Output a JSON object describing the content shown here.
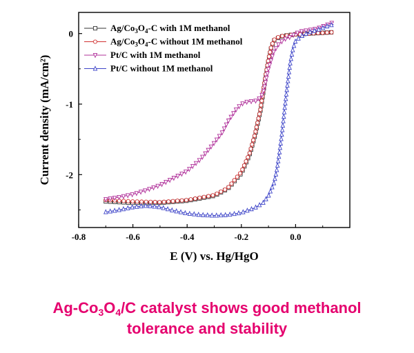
{
  "chart_data": {
    "type": "line",
    "xlabel": "E (V) vs. Hg/HgO",
    "ylabel": "Current density (mA/cm²)",
    "xlim": [
      -0.8,
      0.2
    ],
    "ylim": [
      -2.75,
      0.3
    ],
    "xticks": [
      -0.8,
      -0.6,
      -0.4,
      -0.2,
      0.0
    ],
    "xtick_labels": [
      "-0.8",
      "-0.6",
      "-0.4",
      "-0.2",
      "0.0"
    ],
    "yticks": [
      0,
      -1,
      -2
    ],
    "ytick_labels": [
      "0",
      "-1",
      "-2"
    ],
    "grid": false,
    "legend_position": "top-right",
    "series": [
      {
        "name": "Ag/Co3O4-C with 1M methanol",
        "legend_main": "Ag/Co",
        "legend_sub1": "3",
        "legend_mid": "O",
        "legend_sub2": "4",
        "legend_rest": "-C with 1M methanol",
        "color": "#333333",
        "marker": "square",
        "x": [
          -0.7,
          -0.6,
          -0.5,
          -0.4,
          -0.3,
          -0.25,
          -0.2,
          -0.17,
          -0.15,
          -0.13,
          -0.12,
          -0.11,
          -0.1,
          -0.09,
          -0.08,
          -0.06,
          -0.04,
          -0.02,
          0.0,
          0.02,
          0.05,
          0.1,
          0.14
        ],
        "y": [
          -2.38,
          -2.4,
          -2.4,
          -2.37,
          -2.3,
          -2.2,
          -1.98,
          -1.72,
          -1.45,
          -1.1,
          -0.85,
          -0.6,
          -0.38,
          -0.2,
          -0.1,
          -0.05,
          -0.03,
          -0.02,
          -0.01,
          -0.01,
          0.0,
          0.01,
          0.02
        ]
      },
      {
        "name": "Ag/Co3O4-C without 1M methanol",
        "legend_main": "Ag/Co",
        "legend_sub1": "3",
        "legend_mid": "O",
        "legend_sub2": "4",
        "legend_rest": "-C without 1M methanol",
        "color": "#d03030",
        "marker": "circle",
        "x": [
          -0.7,
          -0.6,
          -0.5,
          -0.4,
          -0.3,
          -0.25,
          -0.2,
          -0.17,
          -0.15,
          -0.13,
          -0.12,
          -0.11,
          -0.1,
          -0.09,
          -0.08,
          -0.06,
          -0.04,
          -0.02,
          0.0,
          0.02,
          0.05,
          0.1,
          0.14
        ],
        "y": [
          -2.36,
          -2.38,
          -2.39,
          -2.36,
          -2.29,
          -2.19,
          -1.96,
          -1.7,
          -1.43,
          -1.08,
          -0.83,
          -0.58,
          -0.36,
          -0.19,
          -0.09,
          -0.04,
          -0.03,
          -0.02,
          -0.01,
          -0.01,
          0.0,
          0.01,
          0.02
        ]
      },
      {
        "name": "Pt/C with 1M methanol",
        "legend_main": "Pt/C with 1M methanol",
        "legend_sub1": "",
        "legend_mid": "",
        "legend_sub2": "",
        "legend_rest": "",
        "color": "#b0309a",
        "marker": "triangle-down",
        "x": [
          -0.7,
          -0.65,
          -0.6,
          -0.55,
          -0.5,
          -0.45,
          -0.4,
          -0.35,
          -0.3,
          -0.27,
          -0.25,
          -0.22,
          -0.2,
          -0.18,
          -0.16,
          -0.14,
          -0.12,
          -0.1,
          -0.08,
          -0.06,
          -0.04,
          -0.02,
          0.0,
          0.02,
          0.05,
          0.08,
          0.1,
          0.12,
          0.14
        ],
        "y": [
          -2.35,
          -2.32,
          -2.28,
          -2.22,
          -2.15,
          -2.05,
          -1.95,
          -1.78,
          -1.55,
          -1.4,
          -1.25,
          -1.08,
          -1.0,
          -0.97,
          -0.96,
          -0.95,
          -0.85,
          -0.5,
          -0.25,
          -0.14,
          -0.08,
          -0.05,
          0.0,
          0.03,
          0.05,
          0.07,
          0.1,
          0.13,
          0.16
        ]
      },
      {
        "name": "Pt/C without 1M methanol",
        "legend_main": "Pt/C without 1M methanol",
        "legend_sub1": "",
        "legend_mid": "",
        "legend_sub2": "",
        "legend_rest": "",
        "color": "#3d44c8",
        "marker": "triangle-up",
        "x": [
          -0.7,
          -0.65,
          -0.6,
          -0.55,
          -0.5,
          -0.45,
          -0.4,
          -0.35,
          -0.3,
          -0.25,
          -0.2,
          -0.15,
          -0.12,
          -0.1,
          -0.08,
          -0.07,
          -0.06,
          -0.05,
          -0.04,
          -0.03,
          -0.02,
          -0.01,
          0.0,
          0.02,
          0.05,
          0.08,
          0.1,
          0.12,
          0.14
        ],
        "y": [
          -2.53,
          -2.5,
          -2.46,
          -2.44,
          -2.46,
          -2.51,
          -2.55,
          -2.57,
          -2.58,
          -2.57,
          -2.54,
          -2.47,
          -2.4,
          -2.3,
          -2.12,
          -1.95,
          -1.7,
          -1.4,
          -1.05,
          -0.72,
          -0.42,
          -0.22,
          -0.1,
          -0.04,
          0.02,
          0.05,
          0.08,
          0.11,
          0.13
        ]
      }
    ]
  },
  "caption": {
    "line1_a": "Ag-Co",
    "line1_sub1": "3",
    "line1_b": "O",
    "line1_sub2": "4",
    "line1_c": "/C catalyst shows good methanol",
    "line2": "tolerance and stability"
  }
}
